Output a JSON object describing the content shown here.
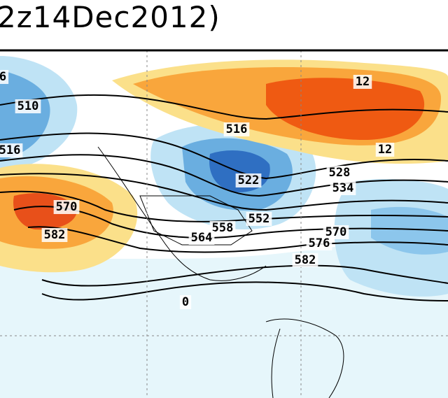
{
  "header": {
    "title": "2z14Dec2012)"
  },
  "contour_labels": [
    "6",
    "510",
    "516",
    "516",
    "522",
    "528",
    "534",
    "552",
    "558",
    "564",
    "570",
    "582",
    "570",
    "576",
    "582",
    "12",
    "12",
    "0"
  ]
}
